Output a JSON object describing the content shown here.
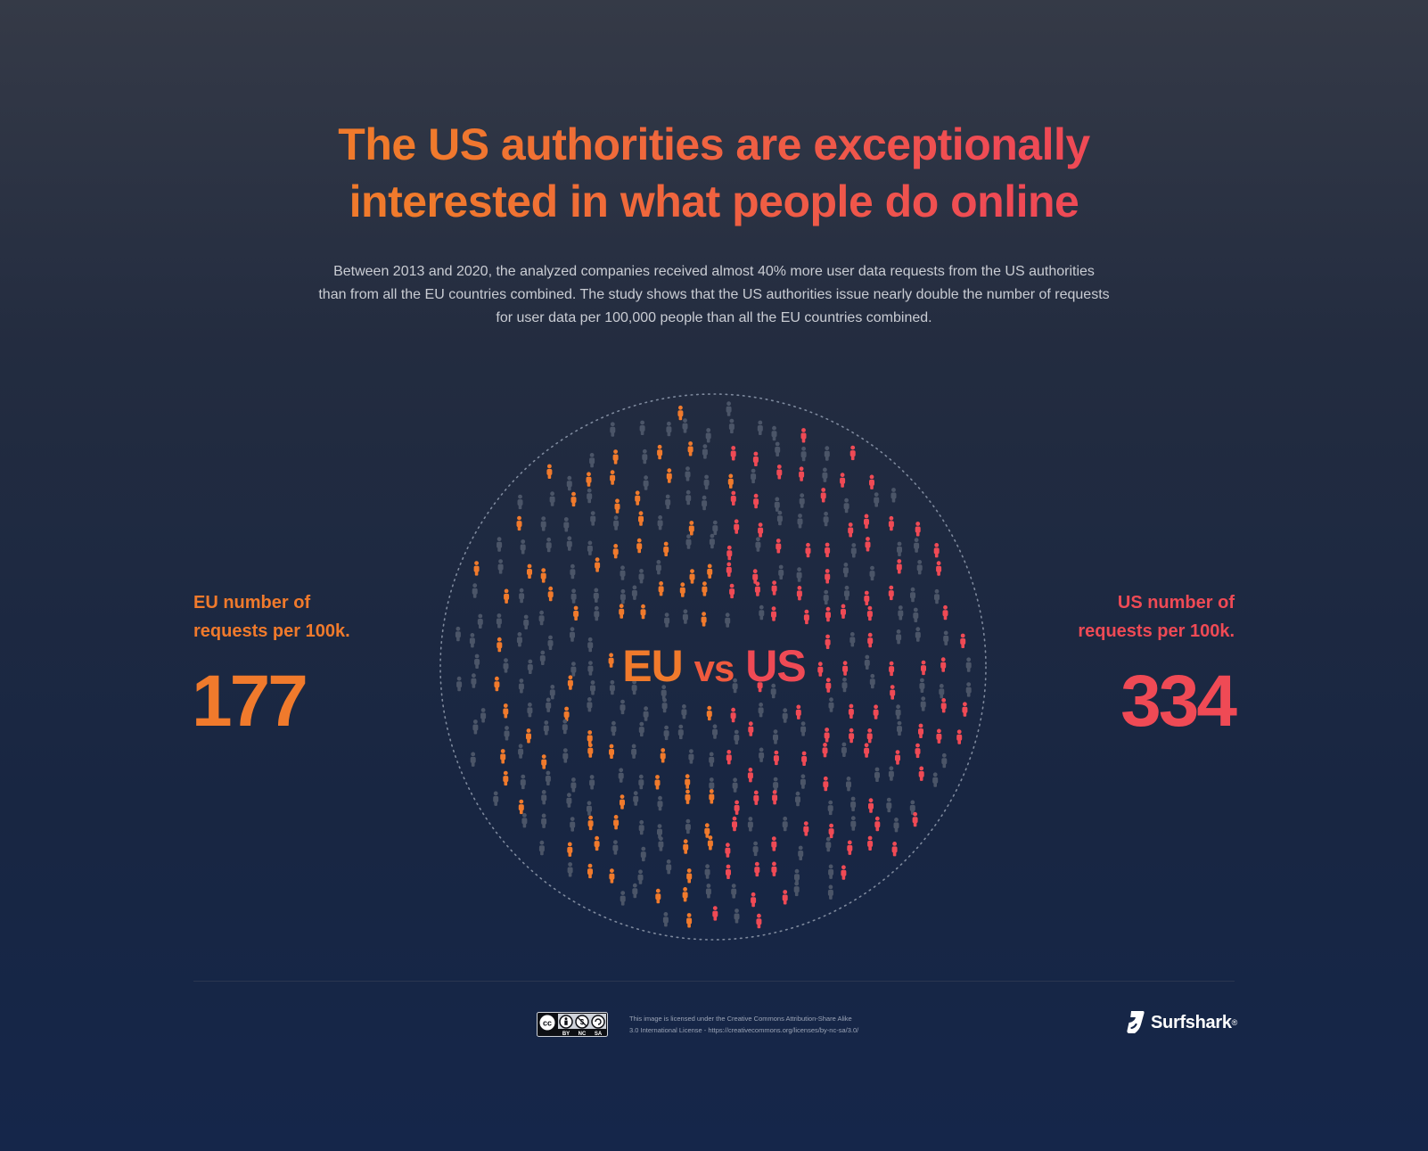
{
  "title": {
    "line1": "The US authorities are exceptionally",
    "line2": "interested in what people do online"
  },
  "subtitle": {
    "line1": "Between 2013 and 2020, the analyzed companies received almost 40% more user data requests from the US authorities",
    "line2": "than from all the EU countries combined. The study shows that the US authorities issue nearly double the number of requests",
    "line3": "for user data per 100,000 people than all the EU countries combined."
  },
  "eu": {
    "label_line1": "EU number of",
    "label_line2": "requests per 100k.",
    "value": "177",
    "center": "EU"
  },
  "us": {
    "label_line1": "US number of",
    "label_line2": "requests per 100k.",
    "value": "334",
    "center": "US"
  },
  "center": {
    "vs": "vs"
  },
  "footer": {
    "cc_badge": {
      "by": "BY",
      "nc": "NC",
      "sa": "SA"
    },
    "license_line1": "This image is licensed under the Creative Commons Attribution-Share Alike",
    "license_line2": "3.0 International License - https://creativecommons.org/licenses/by-nc-sa/3.0/",
    "brand": "Surfshark",
    "brand_mark": "®"
  },
  "icons": {
    "person": "person-icon",
    "cc": "creative-commons-icon",
    "logo": "surfshark-logo-icon"
  },
  "colors": {
    "eu": "#f07a2c",
    "us": "#ef4a55",
    "neutral": "#4b5568",
    "ring": "#7f8a9e"
  }
}
